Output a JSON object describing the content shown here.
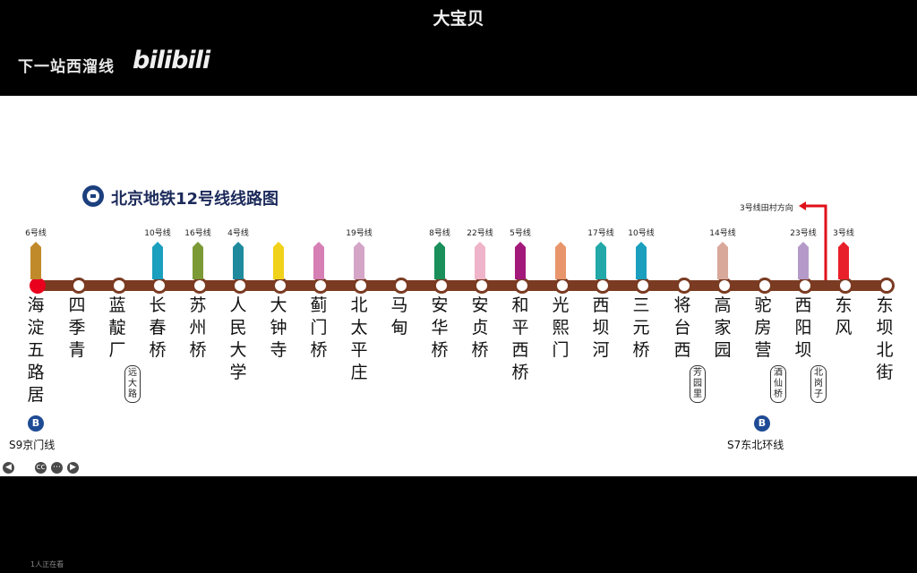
{
  "window_title": "大宝贝",
  "channel_caption": "下一站西溜线",
  "platform_logo": "bilibili",
  "map_title": "北京地铁12号线线路图",
  "line_color": "#7a3b22",
  "direction_note": "3号线田村方向",
  "stations": [
    {
      "name": "海淀五路居",
      "alt": "",
      "transfer": "6号线",
      "color": "#c08a2a"
    },
    {
      "name": "四季青",
      "alt": "",
      "transfer": "",
      "color": ""
    },
    {
      "name": "蓝靛厂",
      "alt": "远大路",
      "transfer": "",
      "color": ""
    },
    {
      "name": "长春桥",
      "alt": "",
      "transfer": "10号线",
      "color": "#1a9fbf"
    },
    {
      "name": "苏州桥",
      "alt": "",
      "transfer": "16号线",
      "color": "#7b9a36"
    },
    {
      "name": "人民大学",
      "alt": "",
      "transfer": "4号线",
      "color": "#1f8a9e"
    },
    {
      "name": "大钟寺",
      "alt": "",
      "transfer": "",
      "color": "#f1d21b"
    },
    {
      "name": "蓟门桥",
      "alt": "",
      "transfer": "",
      "color": "#d67fb5"
    },
    {
      "name": "北太平庄",
      "alt": "",
      "transfer": "19号线",
      "color": "#d4a5c7"
    },
    {
      "name": "马甸",
      "alt": "",
      "transfer": "",
      "color": ""
    },
    {
      "name": "安华桥",
      "alt": "",
      "transfer": "8号线",
      "color": "#1a8f5a"
    },
    {
      "name": "安贞桥",
      "alt": "",
      "transfer": "22号线",
      "color": "#efb4c9"
    },
    {
      "name": "和平西桥",
      "alt": "",
      "transfer": "5号线",
      "color": "#a3197a"
    },
    {
      "name": "光熙门",
      "alt": "",
      "transfer": "",
      "color": "#e8956b"
    },
    {
      "name": "西坝河",
      "alt": "",
      "transfer": "17号线",
      "color": "#22a8a8"
    },
    {
      "name": "三元桥",
      "alt": "",
      "transfer": "10号线",
      "color": "#1a9fbf"
    },
    {
      "name": "将台西",
      "alt": "芳园里",
      "transfer": "",
      "color": ""
    },
    {
      "name": "高家园",
      "alt": "",
      "transfer": "14号线",
      "color": "#d8a89a"
    },
    {
      "name": "驼房营",
      "alt": "酒仙桥",
      "transfer": "",
      "color": ""
    },
    {
      "name": "西阳坝",
      "alt": "北岗子",
      "transfer": "23号线",
      "color": "#b59ac9"
    },
    {
      "name": "东风",
      "alt": "",
      "transfer": "3号线",
      "color": "#e8202a"
    },
    {
      "name": "东坝北街",
      "alt": "",
      "transfer": "",
      "color": ""
    }
  ],
  "external_links": [
    {
      "label": "S9京门线",
      "logo": "B"
    },
    {
      "label": "S7东北环线",
      "logo": "B"
    }
  ],
  "controls": [
    "prev-icon",
    "pen-icon",
    "cc-icon",
    "more-icon",
    "next-icon"
  ],
  "viewers_text": "1人正在看"
}
